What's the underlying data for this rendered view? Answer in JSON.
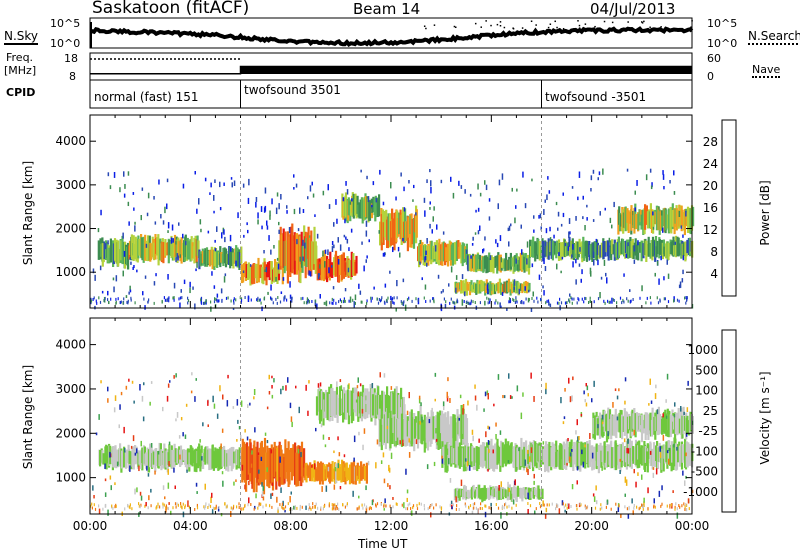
{
  "header": {
    "station": "Saskatoon (fitACF)",
    "beam": "Beam 14",
    "date": "04/Jul/2013"
  },
  "noise_panel": {
    "left_label": "N.Sky",
    "right_label": "N.Search",
    "ticks_left": [
      "10^5",
      "10^0"
    ],
    "ticks_right": [
      "10^5",
      "10^0"
    ]
  },
  "freq_panel": {
    "left_label_1": "Freq.",
    "left_label_2": "[MHz]",
    "right_label": "Nave",
    "ticks_left": [
      "18",
      "8"
    ],
    "ticks_right": [
      "60",
      "0"
    ],
    "freq_series": [
      {
        "t": 0,
        "freq": 10.3
      },
      {
        "t": 6,
        "freq": 10.3
      },
      {
        "t": 6,
        "freq": 13
      },
      {
        "t": 24,
        "freq": 13
      }
    ]
  },
  "cpid": {
    "label": "CPID",
    "segments": [
      {
        "start": 0,
        "end": 6,
        "name": "normal (fast) 151"
      },
      {
        "start": 6,
        "end": 18,
        "name": "twofsound 3501"
      },
      {
        "start": 18,
        "end": 24,
        "name": "twofsound -3501"
      }
    ]
  },
  "chart_data": [
    {
      "type": "heatmap",
      "name": "power",
      "ylabel": "Slant Range [km]",
      "ylim": [
        180,
        4600
      ],
      "yticks": [
        "1000",
        "2000",
        "3000",
        "4000"
      ],
      "xlim": [
        0,
        24
      ],
      "colorbar_label": "Power [dB]",
      "colorbar_ticks": [
        "4",
        "8",
        "12",
        "16",
        "20",
        "24",
        "28"
      ],
      "colors": [
        "#0a1ee6",
        "#2848b4",
        "#3c8c50",
        "#5ab45a",
        "#b4d23c",
        "#f0a01e",
        "#f06414",
        "#e61414"
      ],
      "bands": [
        {
          "t0": 0.3,
          "t1": 1.5,
          "r0": 1150,
          "r1": 1750,
          "level": 0.4
        },
        {
          "t0": 1.5,
          "t1": 4.3,
          "r0": 1250,
          "r1": 1800,
          "level": 0.55
        },
        {
          "t0": 4.3,
          "t1": 6.0,
          "r0": 1100,
          "r1": 1550,
          "level": 0.45
        },
        {
          "t0": 6.0,
          "t1": 7.5,
          "r0": 750,
          "r1": 1250,
          "level": 0.75
        },
        {
          "t0": 7.5,
          "t1": 9.0,
          "r0": 900,
          "r1": 2000,
          "level": 0.7
        },
        {
          "t0": 9.0,
          "t1": 10.6,
          "r0": 850,
          "r1": 1400,
          "level": 0.8
        },
        {
          "t0": 10.0,
          "t1": 11.5,
          "r0": 2200,
          "r1": 2750,
          "level": 0.5
        },
        {
          "t0": 11.5,
          "t1": 13.0,
          "r0": 1600,
          "r1": 2400,
          "level": 0.65
        },
        {
          "t0": 13.0,
          "t1": 15.0,
          "r0": 1200,
          "r1": 1700,
          "level": 0.6
        },
        {
          "t0": 15.0,
          "t1": 17.5,
          "r0": 1000,
          "r1": 1400,
          "level": 0.45
        },
        {
          "t0": 14.5,
          "t1": 17.5,
          "r0": 500,
          "r1": 800,
          "level": 0.55
        },
        {
          "t0": 17.5,
          "t1": 24.0,
          "r0": 1300,
          "r1": 1750,
          "level": 0.4
        },
        {
          "t0": 21.0,
          "t1": 24.0,
          "r0": 1950,
          "r1": 2500,
          "level": 0.55
        }
      ]
    },
    {
      "type": "heatmap",
      "name": "velocity",
      "ylabel": "Slant Range [km]",
      "ylim": [
        180,
        4600
      ],
      "yticks": [
        "1000",
        "2000",
        "3000",
        "4000"
      ],
      "xlim": [
        0,
        24
      ],
      "xticks": [
        "00:00",
        "04:00",
        "08:00",
        "12:00",
        "16:00",
        "20:00",
        "00:00"
      ],
      "xlabel": "Time UT",
      "colorbar_label": "Velocity [m s⁻¹]",
      "colorbar_ticks": [
        "1000",
        "500",
        "100",
        "25",
        "-25",
        "-100",
        "-500",
        "-1000"
      ],
      "colors": [
        "#1428b4",
        "#286e82",
        "#3ca050",
        "#6ec83c",
        "#c8c8c8",
        "#f0b414",
        "#f07814",
        "#e63c14",
        "#e61414"
      ],
      "bands": [
        {
          "t0": 0.3,
          "t1": 6.0,
          "r0": 1200,
          "r1": 1700,
          "level": 0.45
        },
        {
          "t0": 6.0,
          "t1": 8.5,
          "r0": 800,
          "r1": 1800,
          "level": 0.75
        },
        {
          "t0": 8.5,
          "t1": 11.0,
          "r0": 900,
          "r1": 1350,
          "level": 0.65
        },
        {
          "t0": 9.0,
          "t1": 12.5,
          "r0": 2300,
          "r1": 3000,
          "level": 0.45
        },
        {
          "t0": 11.5,
          "t1": 15.0,
          "r0": 1700,
          "r1": 2500,
          "level": 0.45
        },
        {
          "t0": 14.0,
          "t1": 24.0,
          "r0": 1200,
          "r1": 1800,
          "level": 0.45
        },
        {
          "t0": 14.5,
          "t1": 18.0,
          "r0": 500,
          "r1": 800,
          "level": 0.45
        },
        {
          "t0": 20.0,
          "t1": 24.0,
          "r0": 1900,
          "r1": 2500,
          "level": 0.45
        }
      ]
    }
  ]
}
